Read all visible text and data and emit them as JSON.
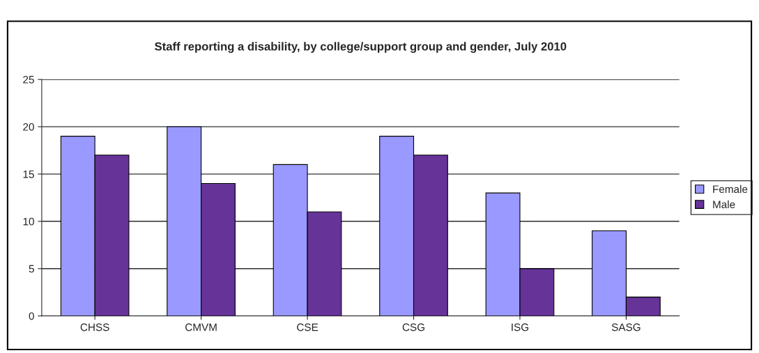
{
  "chart_data": {
    "type": "bar",
    "title": "Staff reporting a disability, by college/support group and gender, July 2010",
    "categories": [
      "CHSS",
      "CMVM",
      "CSE",
      "CSG",
      "ISG",
      "SASG"
    ],
    "series": [
      {
        "name": "Female",
        "color": "#9999ff",
        "values": [
          19,
          20,
          16,
          19,
          13,
          9
        ]
      },
      {
        "name": "Male",
        "color": "#663399",
        "values": [
          17,
          14,
          11,
          17,
          5,
          2
        ]
      }
    ],
    "ylim": [
      0,
      25
    ],
    "yticks": [
      0,
      5,
      10,
      15,
      20,
      25
    ],
    "grid": "y",
    "legend": "right"
  }
}
